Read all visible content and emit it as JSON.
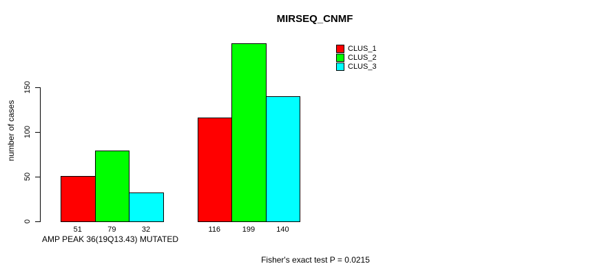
{
  "chart_data": {
    "type": "bar",
    "title": "MIRSEQ_CNMF",
    "ylabel": "number of cases",
    "xlabel": "AMP PEAK 36(19Q13.43) MUTATED",
    "footnote": "Fisher's exact test P = 0.0215",
    "categories": [
      "AMP PEAK 36(19Q13.43) MUTATED",
      ""
    ],
    "series": [
      {
        "name": "CLUS_1",
        "color": "#ff0000",
        "values": [
          51,
          116
        ]
      },
      {
        "name": "CLUS_2",
        "color": "#00ff00",
        "values": [
          79,
          199
        ]
      },
      {
        "name": "CLUS_3",
        "color": "#00ffff",
        "values": [
          32,
          140
        ]
      }
    ],
    "bar_value_labels_shown": true,
    "yticks": [
      0,
      50,
      100,
      150
    ],
    "ylim": [
      0,
      205
    ],
    "grid": false,
    "legend_position": "top-right",
    "axis_color": "#000000",
    "background_color": "#ffffff"
  }
}
